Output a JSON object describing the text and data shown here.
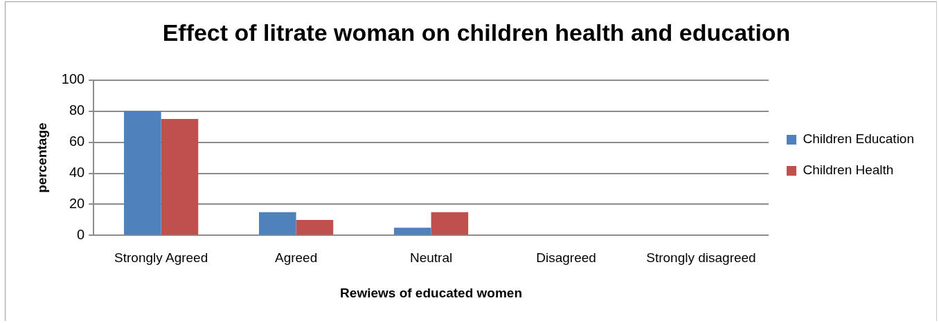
{
  "chart_data": {
    "type": "bar",
    "title": "Effect of litrate woman on children health and education",
    "xlabel": "Rewiews of educated women",
    "ylabel": "percentage",
    "categories": [
      "Strongly Agreed",
      "Agreed",
      "Neutral",
      "Disagreed",
      "Strongly disagreed"
    ],
    "series": [
      {
        "name": "Children Education",
        "color": "#4f81bd",
        "values": [
          80,
          15,
          5,
          0,
          0
        ]
      },
      {
        "name": "Children Health",
        "color": "#c0504d",
        "values": [
          75,
          10,
          15,
          0,
          0
        ]
      }
    ],
    "ylim": [
      0,
      100
    ],
    "yticks": [
      0,
      20,
      40,
      60,
      80,
      100
    ],
    "grid": "y",
    "legend": "right"
  }
}
